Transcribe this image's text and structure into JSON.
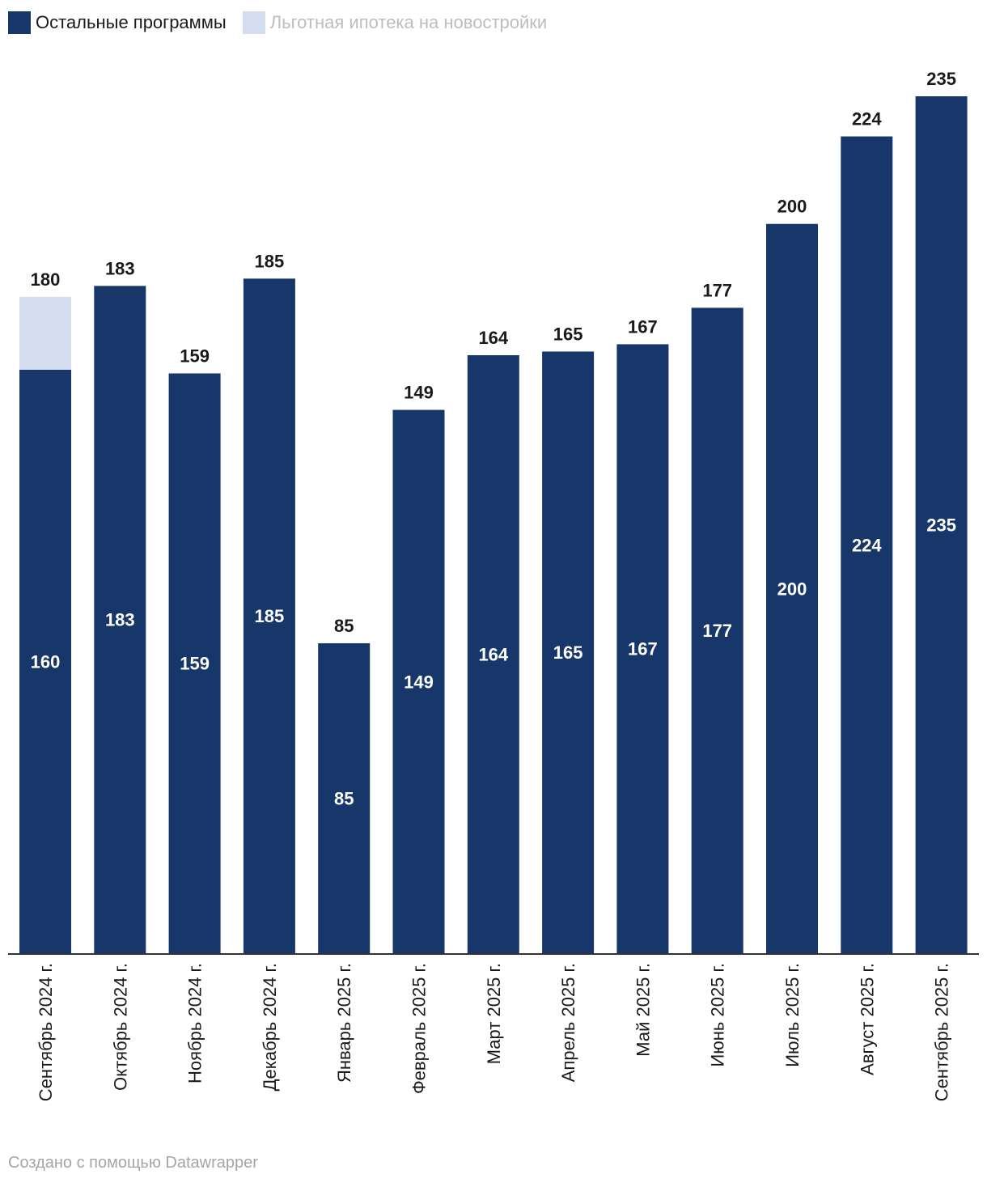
{
  "chart_data": {
    "type": "bar",
    "stacked": true,
    "categories": [
      "Сентябрь 2024 г.",
      "Октябрь 2024 г.",
      "Ноябрь 2024 г.",
      "Декабрь 2024 г.",
      "Январь 2025 г.",
      "Февраль 2025 г.",
      "Март 2025 г.",
      "Апрель 2025 г.",
      "Май 2025 г.",
      "Июнь 2025 г.",
      "Июль 2025 г.",
      "Август 2025 г.",
      "Сентябрь 2025 г."
    ],
    "series": [
      {
        "name": "Остальные программы",
        "color": "#17376a",
        "values": [
          160,
          183,
          159,
          185,
          85,
          149,
          164,
          165,
          167,
          177,
          200,
          224,
          235
        ]
      },
      {
        "name": "Льготная ипотека на новостройки",
        "color": "#d4dcf0",
        "values": [
          20,
          0,
          0,
          0,
          0,
          0,
          0,
          0,
          0,
          0,
          0,
          0,
          0
        ]
      }
    ],
    "totals": [
      180,
      183,
      159,
      185,
      85,
      149,
      164,
      165,
      167,
      177,
      200,
      224,
      235
    ],
    "ylim": [
      0,
      235
    ],
    "legend_position": "top-left",
    "grid": false
  },
  "legend": {
    "item1": {
      "label": "Остальные программы",
      "color": "#17376a",
      "text_color": "#1a1a1a"
    },
    "item2": {
      "label": "Льготная ипотека на новостройки",
      "color": "#d4dcf0",
      "text_color": "#bdbdbd"
    }
  },
  "footer": {
    "text": "Создано с помощью Datawrapper"
  }
}
